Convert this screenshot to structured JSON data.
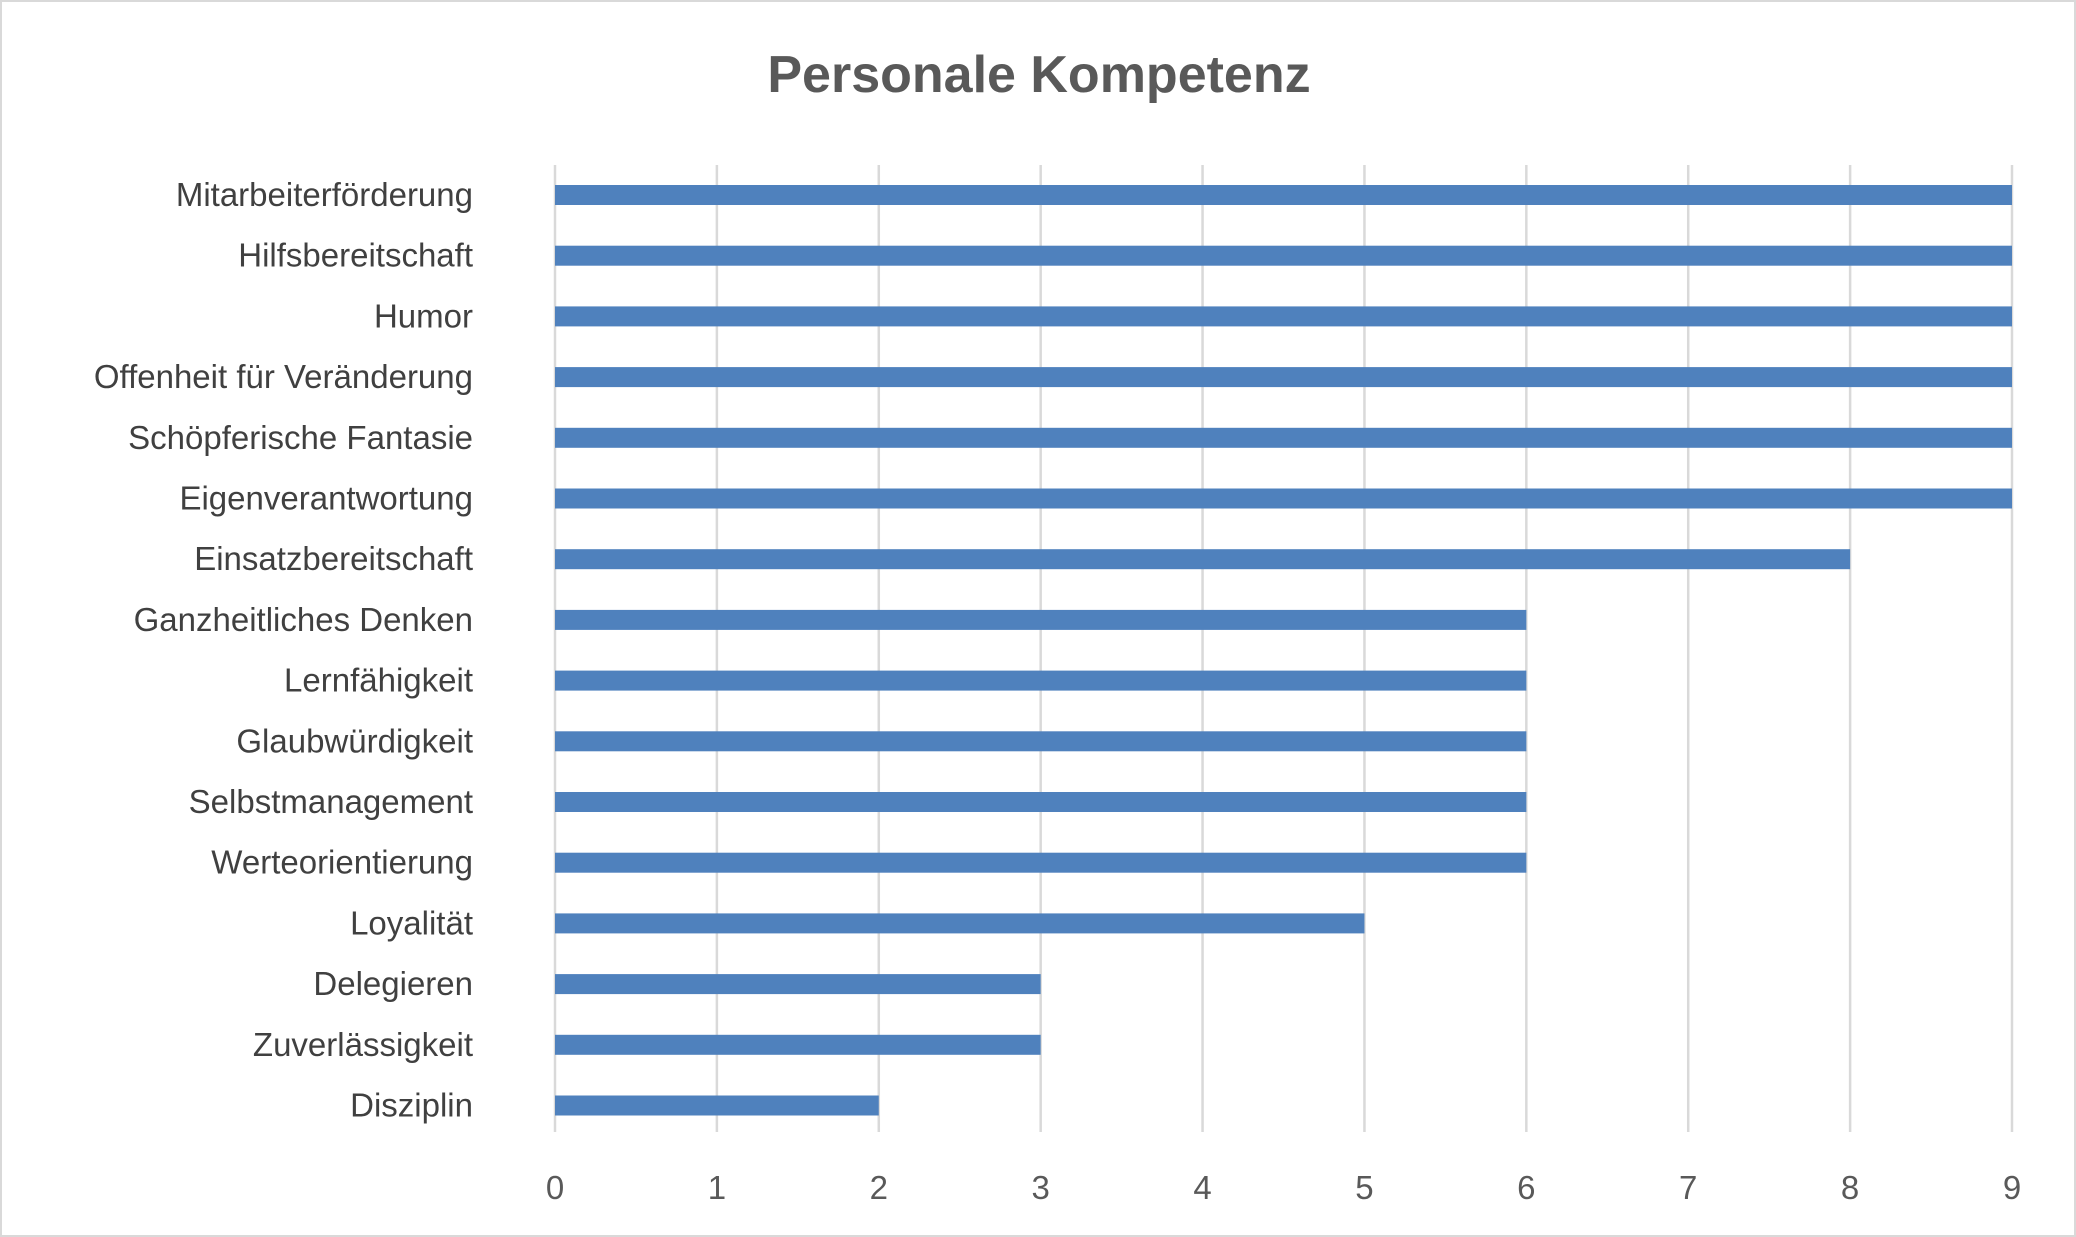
{
  "chart_data": {
    "type": "bar",
    "orientation": "horizontal",
    "title": "Personale Kompetenz",
    "xlabel": "",
    "ylabel": "",
    "categories": [
      "Mitarbeiterförderung",
      "Hilfsbereitschaft",
      "Humor",
      "Offenheit für Veränderung",
      "Schöpferische Fantasie",
      "Eigenverantwortung",
      "Einsatzbereitschaft",
      "Ganzheitliches Denken",
      "Lernfähigkeit",
      "Glaubwürdigkeit",
      "Selbstmanagement",
      "Werteorientierung",
      "Loyalität",
      "Delegieren",
      "Zuverlässigkeit",
      "Disziplin"
    ],
    "values": [
      9,
      9,
      9,
      9,
      9,
      9,
      8,
      6,
      6,
      6,
      6,
      6,
      5,
      3,
      3,
      2
    ],
    "xlim": [
      0,
      9
    ],
    "ticks": [
      "0",
      "1",
      "2",
      "3",
      "4",
      "5",
      "6",
      "7",
      "8",
      "9"
    ],
    "grid": "vertical",
    "bar_color": "#4f81bd"
  }
}
